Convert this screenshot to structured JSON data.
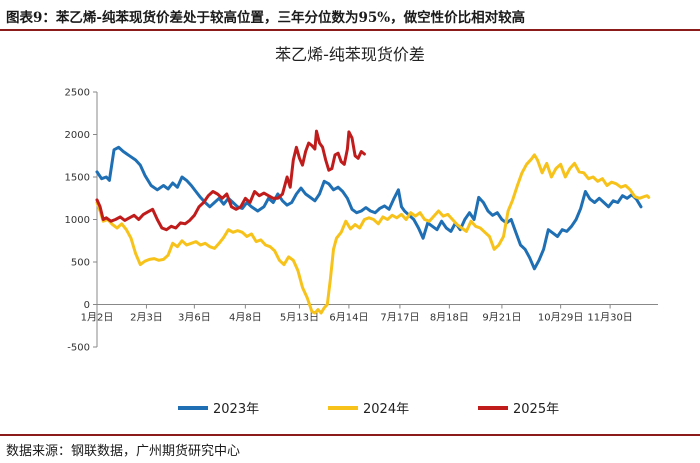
{
  "header": {
    "figure_label": "图表9：",
    "title": "苯乙烯-纯苯现货价差处于较高位置，三年分位数为95%，做空性价比相对较高"
  },
  "footer": {
    "source": "数据来源：钢联数据，广州期货研究中心"
  },
  "chart_data": {
    "type": "line",
    "title": "苯乙烯-纯苯现货价差",
    "xlabel": "",
    "ylabel": "",
    "ylim": [
      -500,
      2500
    ],
    "yticks": [
      -500,
      0,
      500,
      1000,
      1500,
      2000,
      2500
    ],
    "x_range": [
      2,
      365
    ],
    "x_ticks": [
      {
        "label": "1月2日",
        "day": 2
      },
      {
        "label": "2月3日",
        "day": 34
      },
      {
        "label": "3月6日",
        "day": 65
      },
      {
        "label": "4月8日",
        "day": 98
      },
      {
        "label": "5月13日",
        "day": 133
      },
      {
        "label": "6月14日",
        "day": 165
      },
      {
        "label": "7月17日",
        "day": 198
      },
      {
        "label": "8月18日",
        "day": 230
      },
      {
        "label": "9月21日",
        "day": 264
      },
      {
        "label": "10月29日",
        "day": 302
      },
      {
        "label": "11月30日",
        "day": 334
      }
    ],
    "legend_position": "bottom",
    "series": [
      {
        "name": "2023年",
        "color": "#1f6fb4",
        "points": [
          [
            2,
            1560
          ],
          [
            5,
            1480
          ],
          [
            8,
            1500
          ],
          [
            10,
            1460
          ],
          [
            13,
            1820
          ],
          [
            16,
            1850
          ],
          [
            19,
            1800
          ],
          [
            23,
            1750
          ],
          [
            27,
            1700
          ],
          [
            30,
            1640
          ],
          [
            33,
            1520
          ],
          [
            37,
            1400
          ],
          [
            41,
            1350
          ],
          [
            45,
            1400
          ],
          [
            48,
            1360
          ],
          [
            51,
            1430
          ],
          [
            54,
            1380
          ],
          [
            57,
            1500
          ],
          [
            60,
            1460
          ],
          [
            63,
            1400
          ],
          [
            66,
            1330
          ],
          [
            69,
            1260
          ],
          [
            72,
            1200
          ],
          [
            75,
            1150
          ],
          [
            78,
            1200
          ],
          [
            81,
            1250
          ],
          [
            84,
            1180
          ],
          [
            87,
            1250
          ],
          [
            90,
            1200
          ],
          [
            93,
            1150
          ],
          [
            96,
            1130
          ],
          [
            99,
            1200
          ],
          [
            102,
            1150
          ],
          [
            106,
            1100
          ],
          [
            110,
            1150
          ],
          [
            113,
            1250
          ],
          [
            116,
            1200
          ],
          [
            119,
            1300
          ],
          [
            122,
            1220
          ],
          [
            125,
            1170
          ],
          [
            128,
            1200
          ],
          [
            131,
            1300
          ],
          [
            134,
            1370
          ],
          [
            137,
            1300
          ],
          [
            140,
            1260
          ],
          [
            143,
            1220
          ],
          [
            146,
            1300
          ],
          [
            149,
            1450
          ],
          [
            152,
            1420
          ],
          [
            155,
            1350
          ],
          [
            158,
            1380
          ],
          [
            161,
            1330
          ],
          [
            164,
            1250
          ],
          [
            167,
            1120
          ],
          [
            170,
            1080
          ],
          [
            173,
            1100
          ],
          [
            176,
            1140
          ],
          [
            179,
            1100
          ],
          [
            182,
            1080
          ],
          [
            185,
            1130
          ],
          [
            188,
            1160
          ],
          [
            191,
            1120
          ],
          [
            194,
            1240
          ],
          [
            197,
            1350
          ],
          [
            199,
            1150
          ],
          [
            201,
            1100
          ],
          [
            204,
            1050
          ],
          [
            207,
            1000
          ],
          [
            210,
            900
          ],
          [
            213,
            780
          ],
          [
            216,
            960
          ],
          [
            219,
            920
          ],
          [
            222,
            880
          ],
          [
            225,
            980
          ],
          [
            228,
            900
          ],
          [
            231,
            860
          ],
          [
            234,
            960
          ],
          [
            237,
            880
          ],
          [
            240,
            1000
          ],
          [
            243,
            1080
          ],
          [
            246,
            1000
          ],
          [
            249,
            1260
          ],
          [
            252,
            1200
          ],
          [
            255,
            1100
          ],
          [
            258,
            1050
          ],
          [
            261,
            1080
          ],
          [
            264,
            1000
          ],
          [
            267,
            960
          ],
          [
            270,
            1000
          ],
          [
            273,
            850
          ],
          [
            276,
            700
          ],
          [
            279,
            650
          ],
          [
            282,
            550
          ],
          [
            285,
            420
          ],
          [
            288,
            520
          ],
          [
            291,
            650
          ],
          [
            294,
            880
          ],
          [
            297,
            840
          ],
          [
            300,
            800
          ],
          [
            303,
            880
          ],
          [
            306,
            860
          ],
          [
            309,
            920
          ],
          [
            312,
            1000
          ],
          [
            315,
            1130
          ],
          [
            318,
            1330
          ],
          [
            321,
            1240
          ],
          [
            324,
            1200
          ],
          [
            327,
            1250
          ],
          [
            330,
            1200
          ],
          [
            333,
            1150
          ],
          [
            336,
            1220
          ],
          [
            339,
            1200
          ],
          [
            342,
            1280
          ],
          [
            345,
            1250
          ],
          [
            348,
            1290
          ],
          [
            351,
            1240
          ],
          [
            354,
            1150
          ]
        ]
      },
      {
        "name": "2024年",
        "color": "#f7c21a",
        "points": [
          [
            2,
            1200
          ],
          [
            4,
            1100
          ],
          [
            6,
            980
          ],
          [
            9,
            1000
          ],
          [
            12,
            940
          ],
          [
            15,
            900
          ],
          [
            18,
            950
          ],
          [
            21,
            880
          ],
          [
            24,
            780
          ],
          [
            27,
            600
          ],
          [
            30,
            470
          ],
          [
            33,
            510
          ],
          [
            36,
            530
          ],
          [
            39,
            540
          ],
          [
            42,
            520
          ],
          [
            45,
            530
          ],
          [
            48,
            580
          ],
          [
            51,
            720
          ],
          [
            54,
            680
          ],
          [
            57,
            750
          ],
          [
            60,
            700
          ],
          [
            63,
            720
          ],
          [
            66,
            740
          ],
          [
            69,
            700
          ],
          [
            72,
            720
          ],
          [
            75,
            680
          ],
          [
            78,
            660
          ],
          [
            81,
            720
          ],
          [
            84,
            790
          ],
          [
            87,
            880
          ],
          [
            90,
            850
          ],
          [
            93,
            870
          ],
          [
            96,
            850
          ],
          [
            99,
            800
          ],
          [
            102,
            830
          ],
          [
            105,
            740
          ],
          [
            108,
            760
          ],
          [
            111,
            700
          ],
          [
            114,
            680
          ],
          [
            117,
            630
          ],
          [
            120,
            520
          ],
          [
            123,
            470
          ],
          [
            126,
            560
          ],
          [
            129,
            520
          ],
          [
            132,
            400
          ],
          [
            135,
            200
          ],
          [
            138,
            80
          ],
          [
            141,
            -80
          ],
          [
            143,
            -100
          ],
          [
            145,
            -60
          ],
          [
            147,
            -100
          ],
          [
            149,
            -40
          ],
          [
            151,
            0
          ],
          [
            153,
            300
          ],
          [
            155,
            650
          ],
          [
            157,
            780
          ],
          [
            160,
            850
          ],
          [
            163,
            980
          ],
          [
            166,
            890
          ],
          [
            169,
            940
          ],
          [
            172,
            900
          ],
          [
            175,
            1000
          ],
          [
            178,
            1020
          ],
          [
            181,
            1000
          ],
          [
            184,
            950
          ],
          [
            187,
            1030
          ],
          [
            190,
            1000
          ],
          [
            193,
            1050
          ],
          [
            196,
            1020
          ],
          [
            199,
            1060
          ],
          [
            202,
            1000
          ],
          [
            205,
            1080
          ],
          [
            208,
            1040
          ],
          [
            211,
            1080
          ],
          [
            214,
            1000
          ],
          [
            217,
            980
          ],
          [
            220,
            1040
          ],
          [
            223,
            1100
          ],
          [
            226,
            1040
          ],
          [
            229,
            1060
          ],
          [
            232,
            1000
          ],
          [
            235,
            940
          ],
          [
            238,
            900
          ],
          [
            241,
            860
          ],
          [
            244,
            980
          ],
          [
            247,
            920
          ],
          [
            250,
            900
          ],
          [
            253,
            850
          ],
          [
            256,
            800
          ],
          [
            259,
            650
          ],
          [
            262,
            700
          ],
          [
            265,
            800
          ],
          [
            268,
            1100
          ],
          [
            271,
            1230
          ],
          [
            274,
            1400
          ],
          [
            277,
            1550
          ],
          [
            280,
            1650
          ],
          [
            283,
            1710
          ],
          [
            285,
            1760
          ],
          [
            287,
            1700
          ],
          [
            290,
            1550
          ],
          [
            293,
            1660
          ],
          [
            296,
            1500
          ],
          [
            299,
            1600
          ],
          [
            302,
            1650
          ],
          [
            305,
            1500
          ],
          [
            308,
            1600
          ],
          [
            311,
            1660
          ],
          [
            314,
            1560
          ],
          [
            317,
            1550
          ],
          [
            320,
            1480
          ],
          [
            323,
            1500
          ],
          [
            326,
            1450
          ],
          [
            329,
            1480
          ],
          [
            332,
            1400
          ],
          [
            335,
            1440
          ],
          [
            338,
            1420
          ],
          [
            341,
            1380
          ],
          [
            344,
            1400
          ],
          [
            347,
            1350
          ],
          [
            350,
            1270
          ],
          [
            353,
            1250
          ],
          [
            356,
            1270
          ],
          [
            358,
            1280
          ],
          [
            359,
            1260
          ]
        ]
      },
      {
        "name": "2025年",
        "color": "#c01c1c",
        "points": [
          [
            2,
            1230
          ],
          [
            4,
            1150
          ],
          [
            6,
            1000
          ],
          [
            8,
            1020
          ],
          [
            11,
            980
          ],
          [
            14,
            1000
          ],
          [
            17,
            1030
          ],
          [
            20,
            990
          ],
          [
            23,
            1020
          ],
          [
            26,
            1050
          ],
          [
            29,
            1000
          ],
          [
            32,
            1060
          ],
          [
            35,
            1090
          ],
          [
            38,
            1120
          ],
          [
            41,
            1000
          ],
          [
            44,
            900
          ],
          [
            47,
            880
          ],
          [
            50,
            920
          ],
          [
            53,
            900
          ],
          [
            56,
            960
          ],
          [
            59,
            950
          ],
          [
            62,
            990
          ],
          [
            65,
            1050
          ],
          [
            68,
            1150
          ],
          [
            71,
            1200
          ],
          [
            74,
            1280
          ],
          [
            77,
            1330
          ],
          [
            80,
            1300
          ],
          [
            83,
            1250
          ],
          [
            86,
            1300
          ],
          [
            89,
            1150
          ],
          [
            92,
            1120
          ],
          [
            95,
            1150
          ],
          [
            98,
            1250
          ],
          [
            101,
            1200
          ],
          [
            104,
            1330
          ],
          [
            107,
            1280
          ],
          [
            110,
            1310
          ],
          [
            113,
            1280
          ],
          [
            116,
            1250
          ],
          [
            119,
            1250
          ],
          [
            122,
            1300
          ],
          [
            125,
            1500
          ],
          [
            127,
            1380
          ],
          [
            129,
            1700
          ],
          [
            131,
            1850
          ],
          [
            133,
            1720
          ],
          [
            135,
            1640
          ],
          [
            137,
            1800
          ],
          [
            139,
            1900
          ],
          [
            141,
            1870
          ],
          [
            143,
            1830
          ],
          [
            144,
            2040
          ],
          [
            146,
            1900
          ],
          [
            148,
            1850
          ],
          [
            150,
            1700
          ],
          [
            152,
            1580
          ],
          [
            154,
            1600
          ],
          [
            156,
            1760
          ],
          [
            158,
            1780
          ],
          [
            160,
            1680
          ],
          [
            162,
            1650
          ],
          [
            164,
            1830
          ],
          [
            165,
            2030
          ],
          [
            167,
            1960
          ],
          [
            169,
            1750
          ],
          [
            171,
            1720
          ],
          [
            173,
            1800
          ],
          [
            175,
            1770
          ]
        ]
      }
    ]
  }
}
